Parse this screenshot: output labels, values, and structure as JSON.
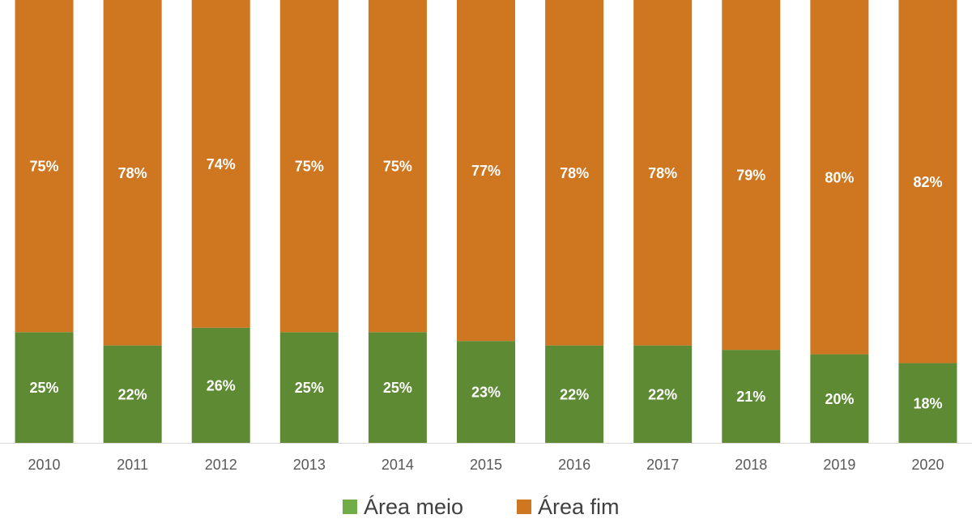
{
  "chart_data": {
    "type": "bar",
    "stacked": true,
    "percent_stacked": true,
    "categories": [
      "2010",
      "2011",
      "2012",
      "2013",
      "2014",
      "2015",
      "2016",
      "2017",
      "2018",
      "2019",
      "2020"
    ],
    "series": [
      {
        "name": "Área meio",
        "color": "#5e8a34",
        "legend_color": "#70ad47",
        "values": [
          25,
          22,
          26,
          25,
          25,
          23,
          22,
          22,
          21,
          20,
          18
        ],
        "labels": [
          "25%",
          "22%",
          "26%",
          "25%",
          "25%",
          "23%",
          "22%",
          "22%",
          "21%",
          "20%",
          "18%"
        ]
      },
      {
        "name": "Área fim",
        "color": "#cf7620",
        "legend_color": "#cf7620",
        "values": [
          75,
          78,
          74,
          75,
          75,
          77,
          78,
          78,
          79,
          80,
          82
        ],
        "labels": [
          "75%",
          "78%",
          "74%",
          "75%",
          "75%",
          "77%",
          "78%",
          "78%",
          "79%",
          "80%",
          "82%"
        ]
      }
    ],
    "ylim": [
      0,
      100
    ],
    "grid": false,
    "legend_position": "bottom",
    "title": "",
    "xlabel": "",
    "ylabel": ""
  }
}
